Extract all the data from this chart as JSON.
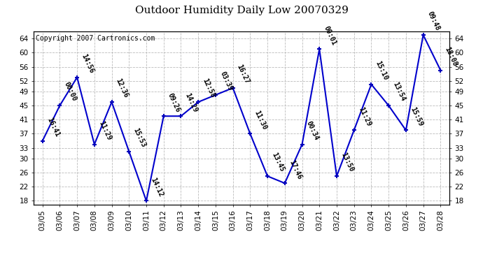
{
  "title": "Outdoor Humidity Daily Low 20070329",
  "copyright": "Copyright 2007 Cartronics.com",
  "dates": [
    "03/05",
    "03/06",
    "03/07",
    "03/08",
    "03/09",
    "03/10",
    "03/11",
    "03/12",
    "03/13",
    "03/14",
    "03/15",
    "03/16",
    "03/17",
    "03/18",
    "03/19",
    "03/20",
    "03/21",
    "03/22",
    "03/23",
    "03/24",
    "03/25",
    "03/26",
    "03/27",
    "03/28"
  ],
  "values": [
    35,
    45,
    53,
    34,
    46,
    32,
    18,
    42,
    42,
    46,
    48,
    50,
    37,
    25,
    23,
    34,
    61,
    25,
    38,
    51,
    45,
    38,
    65,
    55
  ],
  "labels": [
    "16:41",
    "00:00",
    "14:56",
    "11:29",
    "12:36",
    "15:53",
    "14:12",
    "09:26",
    "14:29",
    "12:58",
    "03:39",
    "16:27",
    "11:30",
    "13:45",
    "17:46",
    "00:34",
    "00:01",
    "13:50",
    "11:29",
    "15:10",
    "13:54",
    "15:59",
    "09:48",
    "18:08"
  ],
  "ylim_min": 17,
  "ylim_max": 66,
  "yticks": [
    18,
    22,
    26,
    30,
    33,
    37,
    41,
    45,
    49,
    52,
    56,
    60,
    64
  ],
  "line_color": "#0000cc",
  "marker_color": "#0000bb",
  "bg_color": "#ffffff",
  "grid_color": "#bbbbbb",
  "title_fontsize": 11,
  "label_fontsize": 7,
  "copyright_fontsize": 7,
  "tick_fontsize": 7.5
}
